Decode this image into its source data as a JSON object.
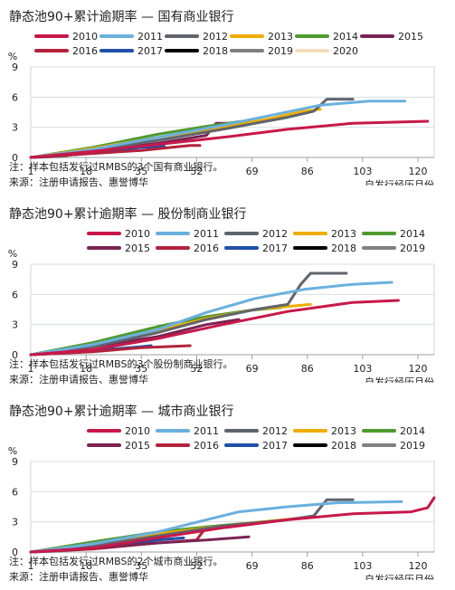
{
  "chart_data": [
    {
      "type": "line",
      "title": "静态池90+累计逾期率 — 国有商业银行",
      "ylabel": "%",
      "xlabel": "自发行经历月份",
      "note": "注：样本包括发行过RMBS的3个国有商业银行。",
      "source": "来源：注册申请报告、惠誉博华",
      "xticks": [
        1,
        18,
        35,
        52,
        69,
        86,
        103,
        120
      ],
      "yticks": [
        0,
        3,
        6,
        9
      ],
      "xlim": [
        1,
        125
      ],
      "ylim": [
        0,
        9
      ],
      "grid": true,
      "legend_rows": [
        [
          "2010",
          "2011",
          "2012",
          "2013",
          "2014",
          "2015"
        ],
        [
          "2016",
          "2017",
          "2018",
          "2019",
          "2020"
        ]
      ],
      "series": [
        {
          "name": "2010",
          "color": "#c8184a",
          "points": [
            [
              1,
              0
            ],
            [
              20,
              0.6
            ],
            [
              40,
              1.3
            ],
            [
              60,
              2.0
            ],
            [
              80,
              2.8
            ],
            [
              100,
              3.4
            ],
            [
              123,
              3.6
            ]
          ]
        },
        {
          "name": "2011",
          "color": "#6ab0de",
          "points": [
            [
              1,
              0
            ],
            [
              20,
              0.8
            ],
            [
              40,
              2.0
            ],
            [
              60,
              3.2
            ],
            [
              75,
              4.2
            ],
            [
              90,
              5.2
            ],
            [
              105,
              5.6
            ],
            [
              116,
              5.6
            ]
          ]
        },
        {
          "name": "2012",
          "color": "#60656d",
          "points": [
            [
              1,
              0
            ],
            [
              20,
              0.7
            ],
            [
              40,
              1.7
            ],
            [
              60,
              2.8
            ],
            [
              80,
              4.0
            ],
            [
              88,
              4.6
            ],
            [
              92,
              5.8
            ],
            [
              100,
              5.8
            ]
          ]
        },
        {
          "name": "2013",
          "color": "#f0ad00",
          "points": [
            [
              1,
              0
            ],
            [
              20,
              0.9
            ],
            [
              40,
              2.0
            ],
            [
              60,
              3.0
            ],
            [
              75,
              3.9
            ],
            [
              85,
              4.6
            ],
            [
              90,
              4.8
            ]
          ]
        },
        {
          "name": "2014",
          "color": "#4f9a2f",
          "points": [
            [
              1,
              0
            ],
            [
              20,
              1.0
            ],
            [
              40,
              2.3
            ],
            [
              55,
              3.1
            ],
            [
              66,
              3.6
            ]
          ]
        },
        {
          "name": "2015",
          "color": "#7a2453",
          "points": [
            [
              1,
              0
            ],
            [
              20,
              0.6
            ],
            [
              40,
              1.4
            ],
            [
              55,
              2.2
            ],
            [
              58,
              3.4
            ],
            [
              65,
              3.4
            ]
          ]
        },
        {
          "name": "2016",
          "color": "#b5223a",
          "points": [
            [
              1,
              0
            ],
            [
              20,
              0.4
            ],
            [
              35,
              0.7
            ],
            [
              50,
              1.2
            ],
            [
              53,
              1.2
            ]
          ]
        },
        {
          "name": "2017",
          "color": "#1f4fa8",
          "points": [
            [
              1,
              0
            ],
            [
              20,
              0.5
            ],
            [
              35,
              1.0
            ],
            [
              42,
              1.1
            ]
          ]
        },
        {
          "name": "2018",
          "color": "#000000",
          "points": [
            [
              1,
              0
            ],
            [
              15,
              0.3
            ],
            [
              27,
              0.7
            ]
          ]
        },
        {
          "name": "2019",
          "color": "#808080",
          "points": [
            [
              1,
              0
            ],
            [
              12,
              0.1
            ]
          ]
        },
        {
          "name": "2020",
          "color": "#f3dcbd",
          "points": [
            [
              1,
              0
            ],
            [
              4,
              0.02
            ]
          ]
        }
      ]
    },
    {
      "type": "line",
      "title": "静态池90+累计逾期率 — 股份制商业银行",
      "ylabel": "%",
      "xlabel": "自发行经历月份",
      "note": "注：样本包括发行过RMBS的3个股份制商业银行。",
      "source": "来源：注册申请报告、惠誉博华",
      "xticks": [
        1,
        18,
        35,
        52,
        69,
        86,
        103,
        120
      ],
      "yticks": [
        0,
        3,
        6,
        9
      ],
      "xlim": [
        1,
        125
      ],
      "ylim": [
        0,
        9
      ],
      "grid": true,
      "legend_rows": [
        [
          "2010",
          "2011",
          "2012",
          "2013",
          "2014"
        ],
        [
          "2015",
          "2016",
          "2017",
          "2018",
          "2019"
        ]
      ],
      "series": [
        {
          "name": "2010",
          "color": "#c8184a",
          "points": [
            [
              1,
              0
            ],
            [
              20,
              0.5
            ],
            [
              40,
              1.6
            ],
            [
              60,
              3.0
            ],
            [
              80,
              4.3
            ],
            [
              100,
              5.2
            ],
            [
              114,
              5.4
            ]
          ]
        },
        {
          "name": "2011",
          "color": "#6ab0de",
          "points": [
            [
              1,
              0
            ],
            [
              20,
              1.0
            ],
            [
              40,
              2.5
            ],
            [
              55,
              4.2
            ],
            [
              70,
              5.6
            ],
            [
              85,
              6.5
            ],
            [
              100,
              7.0
            ],
            [
              112,
              7.2
            ]
          ]
        },
        {
          "name": "2012",
          "color": "#60656d",
          "points": [
            [
              1,
              0
            ],
            [
              20,
              0.8
            ],
            [
              40,
              2.2
            ],
            [
              55,
              3.5
            ],
            [
              70,
              4.5
            ],
            [
              80,
              5.0
            ],
            [
              84,
              7.0
            ],
            [
              87,
              8.1
            ],
            [
              98,
              8.1
            ]
          ]
        },
        {
          "name": "2013",
          "color": "#f0ad00",
          "points": [
            [
              1,
              0
            ],
            [
              20,
              0.9
            ],
            [
              40,
              2.4
            ],
            [
              55,
              3.6
            ],
            [
              70,
              4.5
            ],
            [
              87,
              5.0
            ]
          ]
        },
        {
          "name": "2014",
          "color": "#4f9a2f",
          "points": [
            [
              1,
              0
            ],
            [
              20,
              1.2
            ],
            [
              40,
              2.8
            ],
            [
              55,
              3.8
            ],
            [
              68,
              4.4
            ],
            [
              78,
              4.7
            ]
          ]
        },
        {
          "name": "2015",
          "color": "#7a2453",
          "points": [
            [
              1,
              0
            ],
            [
              20,
              0.8
            ],
            [
              40,
              1.8
            ],
            [
              55,
              3.0
            ],
            [
              65,
              3.5
            ]
          ]
        },
        {
          "name": "2016",
          "color": "#b5223a",
          "points": [
            [
              1,
              0
            ],
            [
              20,
              0.3
            ],
            [
              35,
              0.7
            ],
            [
              50,
              0.9
            ]
          ]
        },
        {
          "name": "2017",
          "color": "#1f4fa8",
          "points": [
            [
              1,
              0
            ],
            [
              20,
              0.4
            ],
            [
              35,
              0.8
            ],
            [
              38,
              0.9
            ]
          ]
        },
        {
          "name": "2018",
          "color": "#000000",
          "points": [
            [
              1,
              0
            ],
            [
              15,
              0.3
            ],
            [
              26,
              0.6
            ]
          ]
        },
        {
          "name": "2019",
          "color": "#808080",
          "points": [
            [
              1,
              0
            ],
            [
              12,
              0.15
            ]
          ]
        }
      ]
    },
    {
      "type": "line",
      "title": "静态池90+累计逾期率 — 城市商业银行",
      "ylabel": "%",
      "xlabel": "自发行经历月份",
      "note": "注：样本包括发行过RMBS的2个城市商业银行。",
      "source": "来源：注册申请报告、惠誉博华",
      "xticks": [
        1,
        18,
        35,
        52,
        69,
        86,
        103,
        120
      ],
      "yticks": [
        0,
        3,
        6,
        9
      ],
      "xlim": [
        1,
        125
      ],
      "ylim": [
        0,
        9
      ],
      "grid": true,
      "legend_rows": [
        [
          "2010",
          "2011",
          "2012",
          "2013",
          "2014"
        ],
        [
          "2015",
          "2016",
          "2017",
          "2018",
          "2019"
        ]
      ],
      "series": [
        {
          "name": "2010",
          "color": "#c8184a",
          "points": [
            [
              1,
              0
            ],
            [
              20,
              0.4
            ],
            [
              40,
              1.4
            ],
            [
              60,
              2.4
            ],
            [
              80,
              3.2
            ],
            [
              100,
              3.8
            ],
            [
              118,
              4.0
            ],
            [
              123,
              4.4
            ],
            [
              125,
              5.4
            ]
          ]
        },
        {
          "name": "2011",
          "color": "#6ab0de",
          "points": [
            [
              1,
              0
            ],
            [
              20,
              0.8
            ],
            [
              40,
              2.0
            ],
            [
              55,
              3.2
            ],
            [
              65,
              4.0
            ],
            [
              80,
              4.5
            ],
            [
              95,
              4.9
            ],
            [
              115,
              5.0
            ]
          ]
        },
        {
          "name": "2012",
          "color": "#60656d",
          "points": [
            [
              1,
              0
            ],
            [
              20,
              0.6
            ],
            [
              40,
              1.6
            ],
            [
              60,
              2.6
            ],
            [
              80,
              3.2
            ],
            [
              88,
              3.6
            ],
            [
              92,
              5.2
            ],
            [
              100,
              5.2
            ]
          ]
        },
        {
          "name": "2013",
          "color": "#f0ad00",
          "points": [
            [
              1,
              0
            ],
            [
              20,
              0.8
            ],
            [
              40,
              1.8
            ],
            [
              60,
              2.6
            ],
            [
              75,
              3.1
            ],
            [
              88,
              3.5
            ]
          ]
        },
        {
          "name": "2014",
          "color": "#4f9a2f",
          "points": [
            [
              1,
              0
            ],
            [
              20,
              1.0
            ],
            [
              40,
              2.0
            ],
            [
              55,
              2.5
            ],
            [
              72,
              3.0
            ]
          ]
        },
        {
          "name": "2015",
          "color": "#7a2453",
          "points": [
            [
              1,
              0
            ],
            [
              20,
              0.4
            ],
            [
              40,
              0.9
            ],
            [
              55,
              1.2
            ],
            [
              68,
              1.5
            ]
          ]
        },
        {
          "name": "2016",
          "color": "#b5223a",
          "points": [
            [
              1,
              0
            ],
            [
              20,
              0.3
            ],
            [
              40,
              0.9
            ],
            [
              52,
              1.2
            ],
            [
              55,
              2.5
            ]
          ]
        },
        {
          "name": "2017",
          "color": "#1f4fa8",
          "points": [
            [
              1,
              0
            ],
            [
              20,
              0.4
            ],
            [
              40,
              1.2
            ],
            [
              48,
              1.4
            ]
          ]
        },
        {
          "name": "2018",
          "color": "#000000",
          "points": [
            [
              1,
              0
            ],
            [
              15,
              0.3
            ],
            [
              30,
              0.6
            ]
          ]
        },
        {
          "name": "2019",
          "color": "#808080",
          "points": [
            [
              1,
              0
            ],
            [
              12,
              0.1
            ]
          ]
        }
      ]
    }
  ]
}
